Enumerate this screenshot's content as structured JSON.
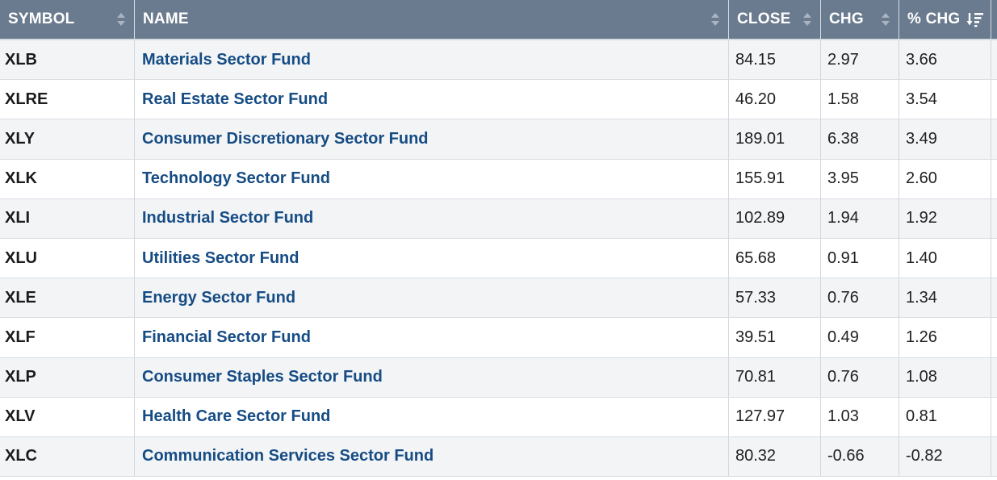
{
  "header": {
    "symbol": "SYMBOL",
    "name": "NAME",
    "close": "CLOSE",
    "chg": "CHG",
    "pct_chg": "% CHG"
  },
  "icons": {
    "sort_icon": "sort-both-icon",
    "sort_desc_icon": "sort-descending-icon"
  },
  "rows": [
    {
      "symbol": "XLB",
      "name": "Materials Sector Fund",
      "close": "84.15",
      "chg": "2.97",
      "pct": "3.66"
    },
    {
      "symbol": "XLRE",
      "name": "Real Estate Sector Fund",
      "close": "46.20",
      "chg": "1.58",
      "pct": "3.54"
    },
    {
      "symbol": "XLY",
      "name": "Consumer Discretionary Sector Fund",
      "close": "189.01",
      "chg": "6.38",
      "pct": "3.49"
    },
    {
      "symbol": "XLK",
      "name": "Technology Sector Fund",
      "close": "155.91",
      "chg": "3.95",
      "pct": "2.60"
    },
    {
      "symbol": "XLI",
      "name": "Industrial Sector Fund",
      "close": "102.89",
      "chg": "1.94",
      "pct": "1.92"
    },
    {
      "symbol": "XLU",
      "name": "Utilities Sector Fund",
      "close": "65.68",
      "chg": "0.91",
      "pct": "1.40"
    },
    {
      "symbol": "XLE",
      "name": "Energy Sector Fund",
      "close": "57.33",
      "chg": "0.76",
      "pct": "1.34"
    },
    {
      "symbol": "XLF",
      "name": "Financial Sector Fund",
      "close": "39.51",
      "chg": "0.49",
      "pct": "1.26"
    },
    {
      "symbol": "XLP",
      "name": "Consumer Staples Sector Fund",
      "close": "70.81",
      "chg": "0.76",
      "pct": "1.08"
    },
    {
      "symbol": "XLV",
      "name": "Health Care Sector Fund",
      "close": "127.97",
      "chg": "1.03",
      "pct": "0.81"
    },
    {
      "symbol": "XLC",
      "name": "Communication Services Sector Fund",
      "close": "80.32",
      "chg": "-0.66",
      "pct": "-0.82"
    }
  ]
}
